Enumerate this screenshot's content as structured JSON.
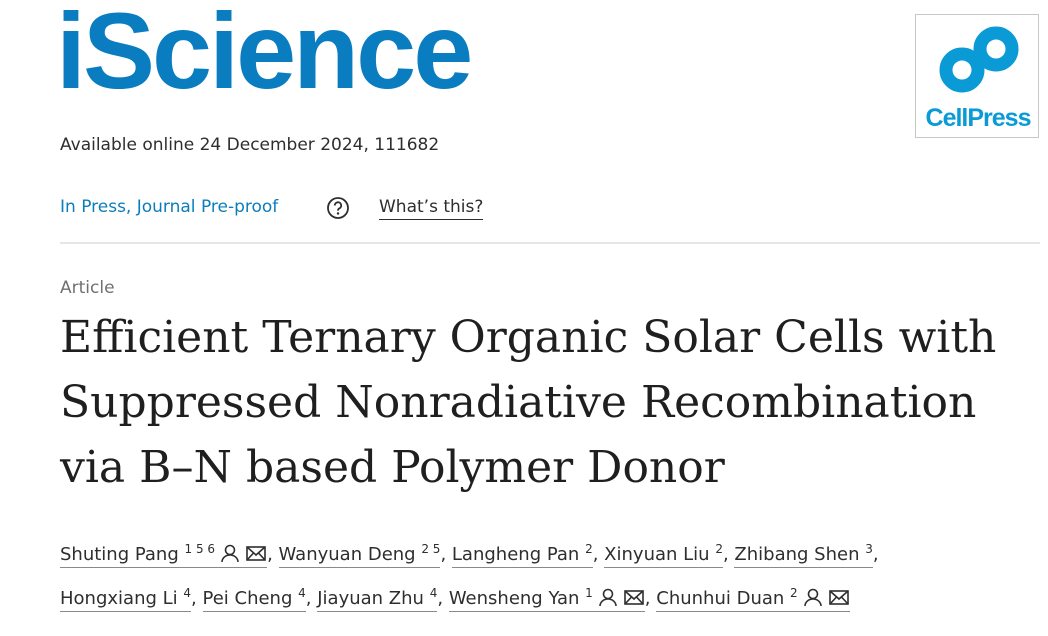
{
  "journal": "iScience",
  "publisher_logo": "CellPress",
  "availability": "Available online 24 December 2024, 111682",
  "status": {
    "label": "In Press, Journal Pre-proof",
    "help": "What’s this?"
  },
  "article_type": "Article",
  "title_lines": [
    "Efficient Ternary Organic Solar Cells with",
    "Suppressed Nonradiative Recombination",
    "via B–N based Polymer Donor"
  ],
  "author_separator": ",",
  "author_lines": [
    [
      {
        "name": "Shuting Pang",
        "affiliations": "1 5 6",
        "person": true,
        "mail": true
      },
      {
        "name": "Wanyuan Deng",
        "affiliations": "2 5",
        "person": false,
        "mail": false
      },
      {
        "name": "Langheng Pan",
        "affiliations": "2",
        "person": false,
        "mail": false
      },
      {
        "name": "Xinyuan Liu",
        "affiliations": "2",
        "person": false,
        "mail": false
      },
      {
        "name": "Zhibang Shen",
        "affiliations": "3",
        "person": false,
        "mail": false
      }
    ],
    [
      {
        "name": "Hongxiang Li",
        "affiliations": "4",
        "person": false,
        "mail": false
      },
      {
        "name": "Pei Cheng",
        "affiliations": "4",
        "person": false,
        "mail": false
      },
      {
        "name": "Jiayuan Zhu",
        "affiliations": "4",
        "person": false,
        "mail": false
      },
      {
        "name": "Wensheng Yan",
        "affiliations": "1",
        "person": true,
        "mail": true
      },
      {
        "name": "Chunhui Duan",
        "affiliations": "2",
        "person": true,
        "mail": true
      }
    ]
  ]
}
